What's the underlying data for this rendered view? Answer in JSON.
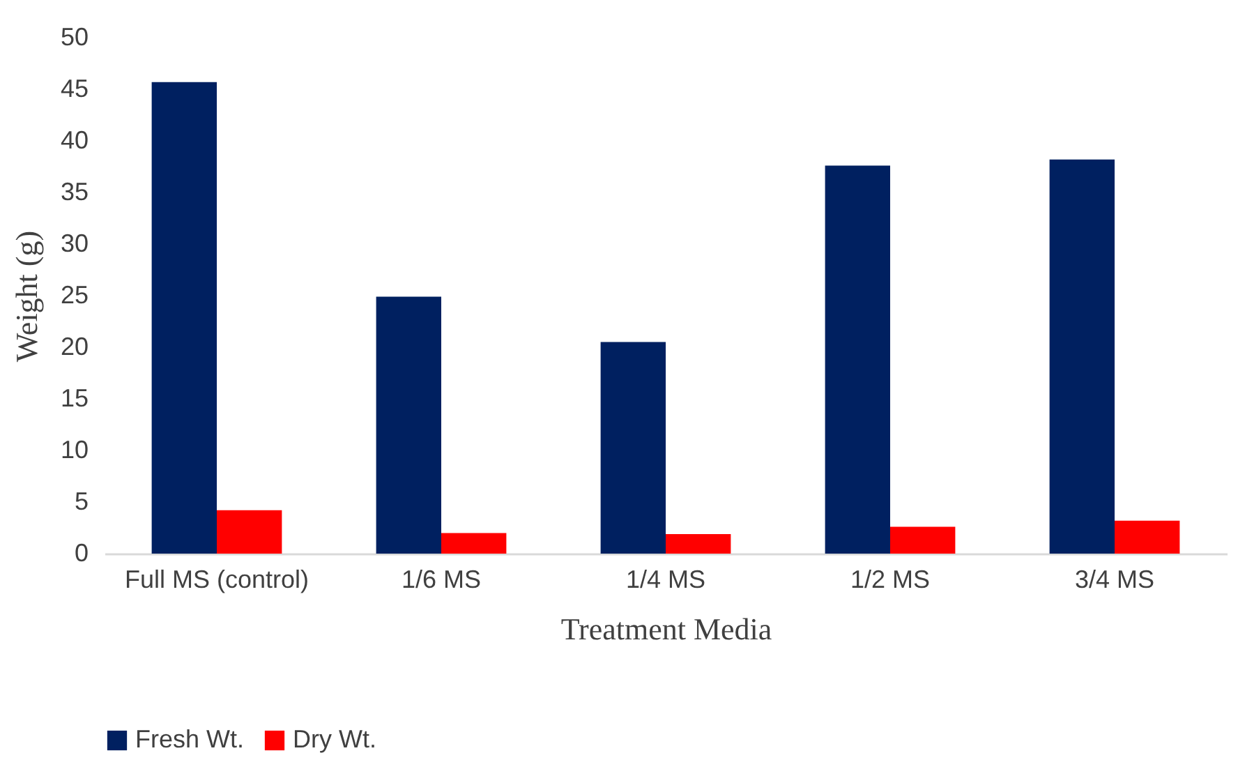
{
  "chart_data": {
    "type": "bar",
    "xlabel": "Treatment Media",
    "ylabel": "Weight (g)",
    "categories": [
      "Full MS (control)",
      "1/6 MS",
      "1/4 MS",
      "1/2 MS",
      "3/4 MS"
    ],
    "series": [
      {
        "name": "Fresh Wt.",
        "color": "#002060",
        "values": [
          45.7,
          24.9,
          20.5,
          37.6,
          38.2
        ]
      },
      {
        "name": "Dry Wt.",
        "color": "#ff0000",
        "values": [
          4.2,
          2.0,
          1.9,
          2.6,
          3.2
        ]
      }
    ],
    "ylim": [
      0,
      50
    ],
    "yticks": [
      0,
      5,
      10,
      15,
      20,
      25,
      30,
      35,
      40,
      45,
      50
    ],
    "grid": false,
    "legend": "bottom"
  }
}
